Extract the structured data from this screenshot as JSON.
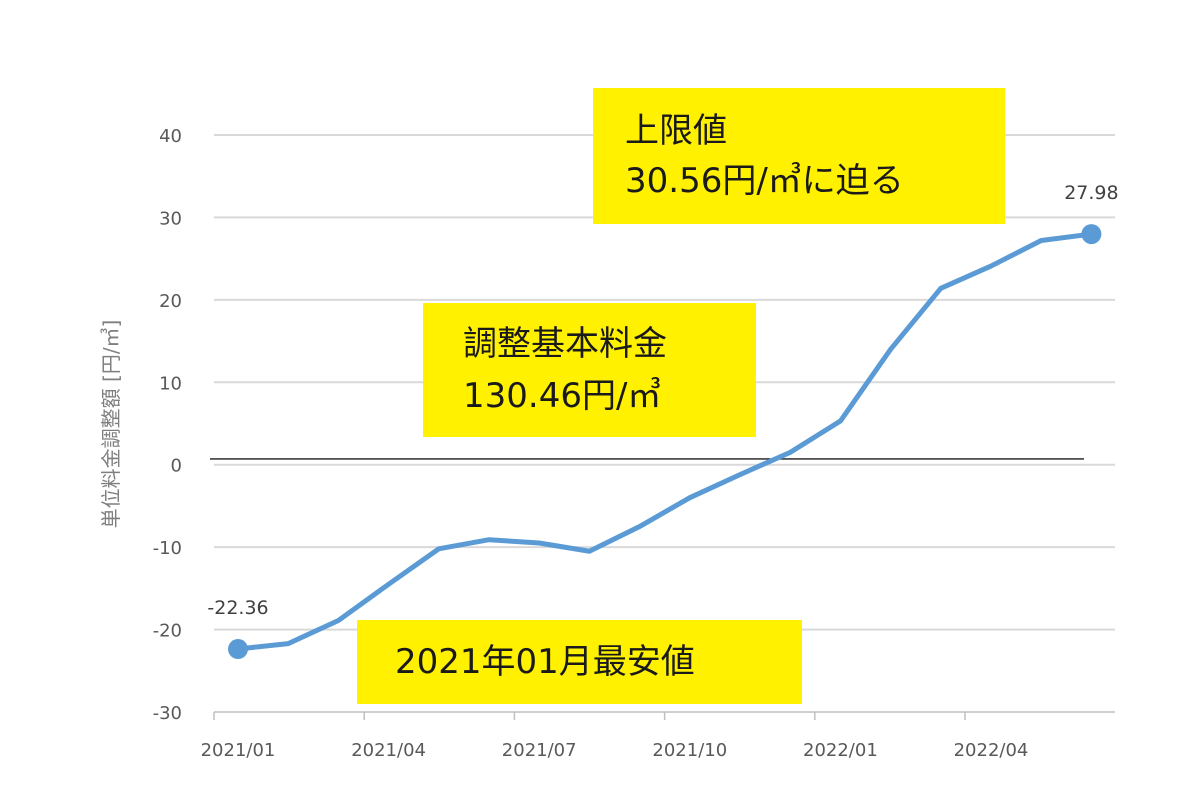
{
  "chart_data": {
    "type": "line",
    "ylabel": "単位料金調整額 [円/㎥]",
    "ylim": [
      -30,
      40
    ],
    "yticks": [
      -30,
      -20,
      -10,
      0,
      10,
      20,
      30,
      40
    ],
    "xtick_labels": [
      "2021/01",
      "2021/04",
      "2021/07",
      "2021/10",
      "2022/01",
      "2022/04"
    ],
    "grid": true,
    "reference_line": 0.7,
    "series": [
      {
        "color": "#5b9bd5",
        "x": [
          "2021/01",
          "2021/02",
          "2021/03",
          "2021/04",
          "2021/05",
          "2021/06",
          "2021/07",
          "2021/08",
          "2021/09",
          "2021/10",
          "2021/11",
          "2021/12",
          "2022/01",
          "2022/02",
          "2022/03",
          "2022/04",
          "2022/05",
          "2022/06"
        ],
        "values": [
          -22.36,
          -21.7,
          -18.9,
          -14.5,
          -10.2,
          -9.1,
          -9.5,
          -10.5,
          -7.5,
          -4.0,
          -1.2,
          1.5,
          5.3,
          14.0,
          21.4,
          24.1,
          27.2,
          27.98
        ]
      }
    ],
    "data_labels": [
      {
        "text": "-22.36",
        "x": "2021/01",
        "y": -22.36
      },
      {
        "text": "27.98",
        "x": "2022/06",
        "y": 27.98
      }
    ],
    "annotations": [
      {
        "id": "upper",
        "lines": [
          "上限値",
          "30.56円/㎥に迫る"
        ]
      },
      {
        "id": "base",
        "lines": [
          "調整基本料金",
          "130.46円/㎥"
        ]
      },
      {
        "id": "low",
        "lines": [
          "2021年01月最安値"
        ]
      }
    ]
  }
}
